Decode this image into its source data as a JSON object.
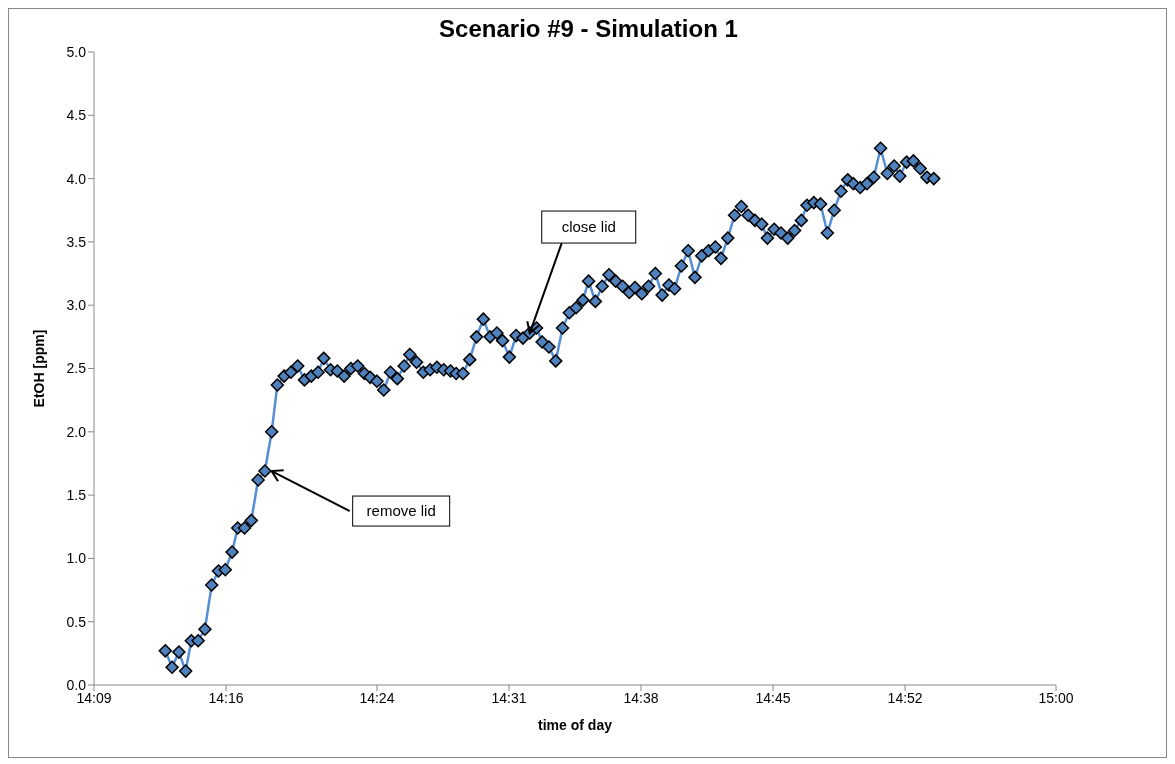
{
  "chart_data": {
    "type": "line",
    "title": "Scenario #9 - Simulation 1",
    "xlabel": "time of day",
    "ylabel": "EtOH [ppm]",
    "x": [
      14.213,
      14.219,
      14.225,
      14.231,
      14.236,
      14.242,
      14.248,
      14.254,
      14.26,
      14.266,
      14.272,
      14.277,
      14.283,
      14.289,
      14.295,
      14.301,
      14.307,
      14.312,
      14.318,
      14.324,
      14.33,
      14.336,
      14.342,
      14.348,
      14.353,
      14.359,
      14.365,
      14.371,
      14.377,
      14.383,
      14.389,
      14.394,
      14.4,
      14.406,
      14.412,
      14.418,
      14.424,
      14.429,
      14.435,
      14.441,
      14.447,
      14.453,
      14.459,
      14.465,
      14.47,
      14.476,
      14.482,
      14.488,
      14.494,
      14.5,
      14.506,
      14.511,
      14.517,
      14.523,
      14.529,
      14.535,
      14.541,
      14.546,
      14.552,
      14.558,
      14.564,
      14.57,
      14.576,
      14.582,
      14.587,
      14.593,
      14.599,
      14.605,
      14.611,
      14.617,
      14.623,
      14.628,
      14.634,
      14.64,
      14.646,
      14.652,
      14.658,
      14.663,
      14.669,
      14.675,
      14.681,
      14.687,
      14.693,
      14.699,
      14.704,
      14.71,
      14.716,
      14.722,
      14.728,
      14.734,
      14.74,
      14.745,
      14.751,
      14.757,
      14.763,
      14.769,
      14.775,
      14.78,
      14.786,
      14.792,
      14.798,
      14.804,
      14.81,
      14.816,
      14.821,
      14.827,
      14.833,
      14.839,
      14.845,
      14.851,
      14.857,
      14.862,
      14.868,
      14.874,
      14.88,
      14.886,
      14.892
    ],
    "series": [
      {
        "color": "#4f81bd",
        "values": [
          0.27,
          0.14,
          0.26,
          0.11,
          0.35,
          0.35,
          0.44,
          0.79,
          0.9,
          0.91,
          1.05,
          1.24,
          1.24,
          1.3,
          1.62,
          1.69,
          2.0,
          2.37,
          2.44,
          2.47,
          2.52,
          2.41,
          2.44,
          2.47,
          2.58,
          2.49,
          2.48,
          2.44,
          2.5,
          2.52,
          2.46,
          2.43,
          2.4,
          2.33,
          2.47,
          2.42,
          2.52,
          2.61,
          2.55,
          2.47,
          2.49,
          2.51,
          2.49,
          2.48,
          2.46,
          2.46,
          2.57,
          2.75,
          2.89,
          2.75,
          2.78,
          2.72,
          2.59,
          2.76,
          2.74,
          2.78,
          2.82,
          2.71,
          2.67,
          2.56,
          2.82,
          2.94,
          2.98,
          3.04,
          3.19,
          3.03,
          3.15,
          3.24,
          3.19,
          3.15,
          3.1,
          3.14,
          3.09,
          3.15,
          3.25,
          3.08,
          3.16,
          3.13,
          3.31,
          3.43,
          3.22,
          3.39,
          3.43,
          3.46,
          3.37,
          3.53,
          3.71,
          3.78,
          3.71,
          3.67,
          3.64,
          3.53,
          3.6,
          3.57,
          3.53,
          3.59,
          3.67,
          3.79,
          3.81,
          3.8,
          3.57,
          3.75,
          3.9,
          3.99,
          3.96,
          3.93,
          3.96,
          4.01,
          4.24,
          4.04,
          4.1,
          4.02,
          4.13,
          4.14,
          4.08,
          4.01,
          4.0
        ]
      }
    ],
    "xlim": [
      14.15,
      15.0
    ],
    "xticks": [
      {
        "value": 14.15,
        "label": "14:09"
      },
      {
        "value": 14.2667,
        "label": "14:16"
      },
      {
        "value": 14.4,
        "label": "14:24"
      },
      {
        "value": 14.5167,
        "label": "14:31"
      },
      {
        "value": 14.6333,
        "label": "14:38"
      },
      {
        "value": 14.75,
        "label": "14:45"
      },
      {
        "value": 14.8667,
        "label": "14:52"
      },
      {
        "value": 15.0,
        "label": "15:00"
      }
    ],
    "ylim": [
      0,
      5
    ],
    "yticks": [
      {
        "value": 0,
        "label": "0.0"
      },
      {
        "value": 0.5,
        "label": "0.5"
      },
      {
        "value": 1,
        "label": "1.0"
      },
      {
        "value": 1.5,
        "label": "1.5"
      },
      {
        "value": 2,
        "label": "2.0"
      },
      {
        "value": 2.5,
        "label": "2.5"
      },
      {
        "value": 3,
        "label": "3.0"
      },
      {
        "value": 3.5,
        "label": "3.5"
      },
      {
        "value": 4,
        "label": "4.0"
      },
      {
        "value": 4.5,
        "label": "4.5"
      },
      {
        "value": 5,
        "label": "5.0"
      }
    ],
    "annotations": [
      {
        "text": "remove lid",
        "x": 14.307,
        "y": 1.69
      },
      {
        "text": "close lid",
        "x": 14.535,
        "y": 2.78
      }
    ],
    "marker": "diamond",
    "line_style": "solid",
    "grid": false
  }
}
